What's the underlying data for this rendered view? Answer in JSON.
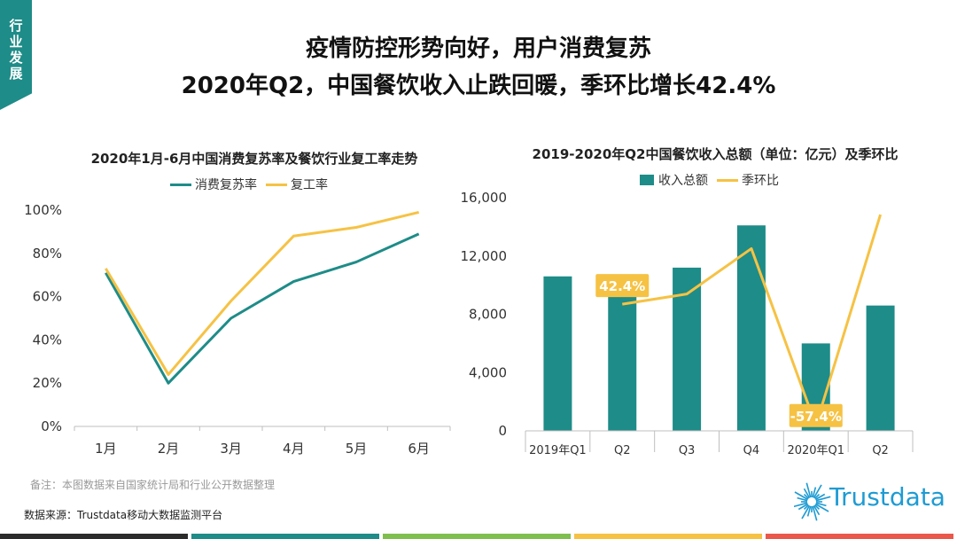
{
  "tag": {
    "text": "行业发展"
  },
  "title": {
    "line1": "疫情防控形势向好，用户消费复苏",
    "line2": "2020年Q2，中国餐饮收入止跌回暖，季环比增长42.4%"
  },
  "note": "备注：本图数据来自国家统计局和行业公开数据整理",
  "source": "数据来源：Trustdata移动大数据监测平台",
  "logo": {
    "text": "Trustdata"
  },
  "colors": {
    "teal": "#1e8c88",
    "yellow": "#f6c244",
    "dark": "#2b2b2b",
    "orange": "#f0a93b",
    "red": "#e9584b"
  },
  "chart_data": [
    {
      "type": "line",
      "title": "2020年1月-6月中国消费复苏率及餐饮行业复工率走势",
      "categories": [
        "1月",
        "2月",
        "3月",
        "4月",
        "5月",
        "6月"
      ],
      "ylim": [
        0,
        100
      ],
      "yticks": [
        "0%",
        "20%",
        "40%",
        "60%",
        "80%",
        "100%"
      ],
      "legend_position": "top",
      "series": [
        {
          "name": "消费复苏率",
          "color": "#1e8c88",
          "values": [
            71,
            20,
            50,
            67,
            76,
            89
          ]
        },
        {
          "name": "复工率",
          "color": "#f6c244",
          "values": [
            73,
            24,
            58,
            88,
            92,
            99
          ]
        }
      ]
    },
    {
      "type": "bar",
      "title": "2019-2020年Q2中国餐饮收入总额（单位：亿元）及季环比",
      "categories": [
        "2019年Q1",
        "Q2",
        "Q3",
        "Q4",
        "2020年Q1",
        "Q2"
      ],
      "ylim": [
        0,
        16000
      ],
      "yticks": [
        "0",
        "4,000",
        "8,000",
        "12,000",
        "16,000"
      ],
      "legend_position": "top",
      "bar_series": {
        "name": "收入总额",
        "color": "#1e8c88",
        "values": [
          10600,
          10600,
          11200,
          14100,
          6000,
          8600
        ]
      },
      "line_series": {
        "name": "季环比",
        "color": "#f6c244",
        "values": [
          null,
          0.0,
          4.8,
          26.3,
          -57.4,
          42.4
        ]
      },
      "annotations": [
        {
          "category": "2020年Q1",
          "label": "-57.4%"
        },
        {
          "category": "Q2",
          "label": "42.4%"
        }
      ]
    }
  ]
}
